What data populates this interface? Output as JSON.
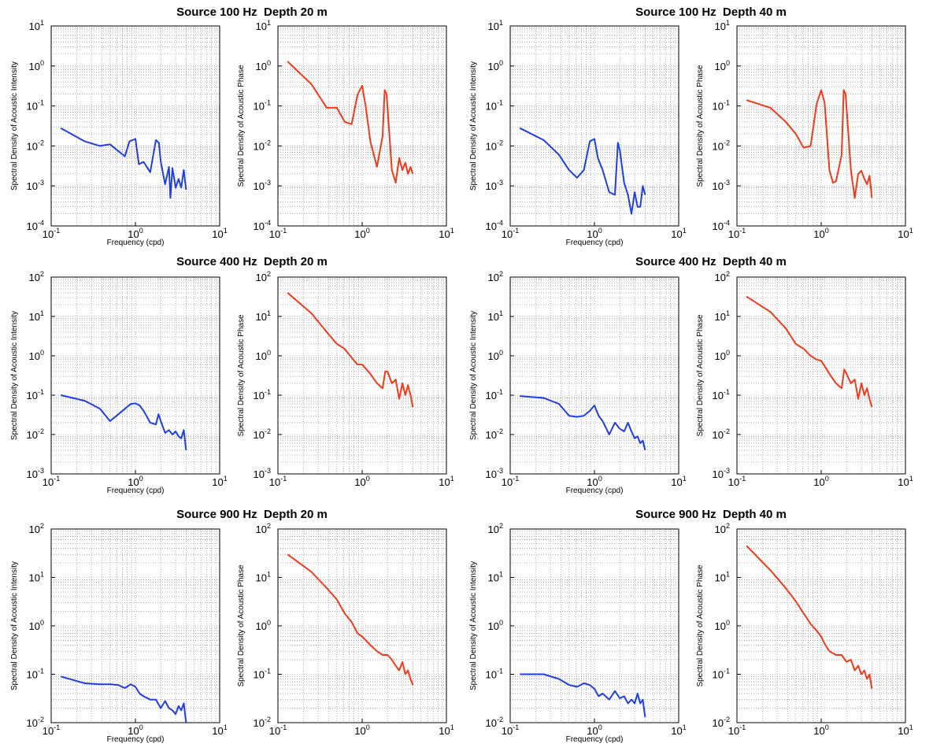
{
  "figure": {
    "titles": [
      {
        "source": "Source 100 Hz",
        "depth": "Depth 20 m"
      },
      {
        "source": "Source 100 Hz",
        "depth": "Depth 40 m"
      },
      {
        "source": "Source 400 Hz",
        "depth": "Depth 20 m"
      },
      {
        "source": "Source 400 Hz",
        "depth": "Depth 40 m"
      },
      {
        "source": "Source 900 Hz",
        "depth": "Depth 20 m"
      },
      {
        "source": "Source 900 Hz",
        "depth": "Depth 40 m"
      }
    ],
    "colors": {
      "intensity": "#1f3fe0",
      "phase": "#f03a1a"
    }
  },
  "chart_data": [
    {
      "type": "line",
      "title": "Source 100 Hz Depth 20 m",
      "xlabel": "Frequency (cpd)",
      "ylabel": "Spectral Density of Acoustic Intensity",
      "xscale": "log",
      "yscale": "log",
      "xlim": [
        0.1,
        10
      ],
      "ylim": [
        0.0001,
        10
      ],
      "grid": true,
      "color": "#1f3fe0",
      "x": [
        0.13,
        0.25,
        0.38,
        0.5,
        0.75,
        0.85,
        1.0,
        1.1,
        1.25,
        1.5,
        1.75,
        1.9,
        2.0,
        2.25,
        2.5,
        2.6,
        2.75,
        3.0,
        3.25,
        3.5,
        3.75,
        4.0
      ],
      "y": [
        0.028,
        0.013,
        0.01,
        0.011,
        0.0055,
        0.013,
        0.015,
        0.0035,
        0.004,
        0.0022,
        0.014,
        0.012,
        0.004,
        0.0011,
        0.003,
        0.0005,
        0.0028,
        0.0009,
        0.0015,
        0.0009,
        0.0025,
        0.0008
      ]
    },
    {
      "type": "line",
      "title": "Source 100 Hz Depth 20 m",
      "xlabel": "",
      "ylabel": "Spectral Density of Acoustic Phase",
      "xscale": "log",
      "yscale": "log",
      "xlim": [
        0.1,
        10
      ],
      "ylim": [
        0.0001,
        10
      ],
      "grid": true,
      "color": "#f03a1a",
      "x": [
        0.13,
        0.25,
        0.38,
        0.5,
        0.62,
        0.75,
        0.88,
        1.0,
        1.1,
        1.25,
        1.5,
        1.75,
        1.85,
        1.95,
        2.25,
        2.5,
        2.75,
        3.0,
        3.25,
        3.5,
        3.75,
        4.0
      ],
      "y": [
        1.3,
        0.35,
        0.09,
        0.09,
        0.04,
        0.035,
        0.19,
        0.32,
        0.1,
        0.013,
        0.003,
        0.018,
        0.25,
        0.2,
        0.0025,
        0.0012,
        0.005,
        0.0025,
        0.0038,
        0.002,
        0.003,
        0.002
      ]
    },
    {
      "type": "line",
      "title": "Source 100 Hz Depth 40 m",
      "xlabel": "Frequency (cpd)",
      "ylabel": "Spectral Density of Acoustic Intensity",
      "xscale": "log",
      "yscale": "log",
      "xlim": [
        0.1,
        10
      ],
      "ylim": [
        0.0001,
        10
      ],
      "grid": true,
      "color": "#1f3fe0",
      "x": [
        0.13,
        0.25,
        0.38,
        0.5,
        0.62,
        0.75,
        0.88,
        1.0,
        1.1,
        1.25,
        1.5,
        1.75,
        1.9,
        2.0,
        2.25,
        2.5,
        2.75,
        3.0,
        3.25,
        3.5,
        3.75,
        4.0
      ],
      "y": [
        0.028,
        0.014,
        0.006,
        0.0025,
        0.0016,
        0.0025,
        0.013,
        0.015,
        0.005,
        0.0025,
        0.0007,
        0.0006,
        0.012,
        0.008,
        0.0012,
        0.0006,
        0.0002,
        0.0007,
        0.0003,
        0.0003,
        0.001,
        0.0006
      ]
    },
    {
      "type": "line",
      "title": "Source 100 Hz Depth 40 m",
      "xlabel": "",
      "ylabel": "Spectral Density of Acoustic Phase",
      "xscale": "log",
      "yscale": "log",
      "xlim": [
        0.1,
        10
      ],
      "ylim": [
        0.0001,
        10
      ],
      "grid": true,
      "color": "#f03a1a",
      "x": [
        0.13,
        0.25,
        0.38,
        0.5,
        0.62,
        0.75,
        0.88,
        1.0,
        1.1,
        1.25,
        1.38,
        1.5,
        1.75,
        1.85,
        1.95,
        2.25,
        2.5,
        2.75,
        3.0,
        3.25,
        3.5,
        3.75,
        4.0
      ],
      "y": [
        0.14,
        0.09,
        0.04,
        0.02,
        0.009,
        0.01,
        0.11,
        0.25,
        0.12,
        0.0025,
        0.0012,
        0.0013,
        0.006,
        0.25,
        0.2,
        0.0025,
        0.0005,
        0.002,
        0.0024,
        0.0015,
        0.0011,
        0.0018,
        0.0005
      ]
    },
    {
      "type": "line",
      "title": "Source 400 Hz Depth 20 m",
      "xlabel": "Frequency (cpd)",
      "ylabel": "Spectral Density of Acoustic Intensity",
      "xscale": "log",
      "yscale": "log",
      "xlim": [
        0.1,
        10
      ],
      "ylim": [
        0.001,
        100
      ],
      "grid": true,
      "color": "#1f3fe0",
      "x": [
        0.13,
        0.25,
        0.38,
        0.5,
        0.62,
        0.75,
        0.88,
        1.0,
        1.12,
        1.25,
        1.5,
        1.75,
        1.88,
        2.0,
        2.25,
        2.5,
        2.75,
        3.0,
        3.25,
        3.5,
        3.75,
        4.0
      ],
      "y": [
        0.1,
        0.072,
        0.045,
        0.022,
        0.032,
        0.045,
        0.06,
        0.062,
        0.055,
        0.04,
        0.02,
        0.018,
        0.033,
        0.022,
        0.011,
        0.013,
        0.01,
        0.012,
        0.009,
        0.008,
        0.013,
        0.004
      ]
    },
    {
      "type": "line",
      "title": "Source 400 Hz Depth 20 m",
      "xlabel": "",
      "ylabel": "Spectral Density of Acoustic Phase",
      "xscale": "log",
      "yscale": "log",
      "xlim": [
        0.1,
        10
      ],
      "ylim": [
        0.001,
        100
      ],
      "grid": true,
      "color": "#f03a1a",
      "x": [
        0.13,
        0.25,
        0.38,
        0.5,
        0.62,
        0.75,
        0.88,
        1.0,
        1.25,
        1.5,
        1.75,
        1.88,
        2.0,
        2.25,
        2.5,
        2.75,
        3.0,
        3.25,
        3.5,
        3.75,
        4.0
      ],
      "y": [
        40,
        12,
        4,
        2,
        1.5,
        0.9,
        0.6,
        0.6,
        0.35,
        0.2,
        0.15,
        0.4,
        0.4,
        0.2,
        0.25,
        0.08,
        0.2,
        0.1,
        0.18,
        0.1,
        0.05
      ]
    },
    {
      "type": "line",
      "title": "Source 400 Hz Depth 40 m",
      "xlabel": "Frequency (cpd)",
      "ylabel": "Spectral Density of Acoustic Intensity",
      "xscale": "log",
      "yscale": "log",
      "xlim": [
        0.1,
        10
      ],
      "ylim": [
        0.001,
        100
      ],
      "grid": true,
      "color": "#1f3fe0",
      "x": [
        0.13,
        0.25,
        0.38,
        0.5,
        0.62,
        0.75,
        0.88,
        1.0,
        1.12,
        1.25,
        1.5,
        1.75,
        2.0,
        2.25,
        2.5,
        2.75,
        3.0,
        3.25,
        3.5,
        3.75,
        4.0
      ],
      "y": [
        0.095,
        0.085,
        0.06,
        0.03,
        0.028,
        0.03,
        0.04,
        0.055,
        0.03,
        0.022,
        0.01,
        0.02,
        0.014,
        0.012,
        0.02,
        0.012,
        0.008,
        0.009,
        0.006,
        0.007,
        0.004
      ]
    },
    {
      "type": "line",
      "title": "Source 400 Hz Depth 40 m",
      "xlabel": "",
      "ylabel": "Spectral Density of Acoustic Phase",
      "xscale": "log",
      "yscale": "log",
      "xlim": [
        0.1,
        10
      ],
      "ylim": [
        0.001,
        100
      ],
      "grid": true,
      "color": "#f03a1a",
      "x": [
        0.13,
        0.25,
        0.38,
        0.5,
        0.62,
        0.75,
        0.88,
        1.0,
        1.25,
        1.5,
        1.75,
        1.88,
        2.0,
        2.25,
        2.5,
        2.75,
        3.0,
        3.25,
        3.5,
        3.75,
        4.0
      ],
      "y": [
        32,
        13,
        5,
        2,
        1.5,
        1.0,
        0.8,
        0.75,
        0.35,
        0.2,
        0.15,
        0.45,
        0.35,
        0.2,
        0.25,
        0.08,
        0.2,
        0.1,
        0.15,
        0.08,
        0.05
      ]
    },
    {
      "type": "line",
      "title": "Source 900 Hz Depth 20 m",
      "xlabel": "Frequency (cpd)",
      "ylabel": "Spectral Density of Acoustic Intensity",
      "xscale": "log",
      "yscale": "log",
      "xlim": [
        0.1,
        10
      ],
      "ylim": [
        0.01,
        100
      ],
      "grid": true,
      "color": "#1f3fe0",
      "x": [
        0.13,
        0.25,
        0.38,
        0.5,
        0.62,
        0.75,
        0.88,
        1.0,
        1.12,
        1.25,
        1.5,
        1.75,
        2.0,
        2.25,
        2.5,
        2.75,
        3.0,
        3.25,
        3.5,
        3.75,
        4.0
      ],
      "y": [
        0.09,
        0.065,
        0.062,
        0.062,
        0.06,
        0.052,
        0.062,
        0.055,
        0.04,
        0.035,
        0.03,
        0.03,
        0.02,
        0.028,
        0.02,
        0.018,
        0.015,
        0.022,
        0.018,
        0.025,
        0.01
      ]
    },
    {
      "type": "line",
      "title": "Source 900 Hz Depth 20 m",
      "xlabel": "",
      "ylabel": "Spectral Density of Acoustic Phase",
      "xscale": "log",
      "yscale": "log",
      "xlim": [
        0.1,
        10
      ],
      "ylim": [
        0.01,
        100
      ],
      "grid": true,
      "color": "#f03a1a",
      "x": [
        0.13,
        0.25,
        0.38,
        0.5,
        0.62,
        0.75,
        0.88,
        1.0,
        1.25,
        1.5,
        1.75,
        2.0,
        2.25,
        2.5,
        2.75,
        3.0,
        3.25,
        3.5,
        3.75,
        4.0
      ],
      "y": [
        30,
        13,
        6,
        3.5,
        1.8,
        1.2,
        0.7,
        0.6,
        0.4,
        0.3,
        0.25,
        0.25,
        0.2,
        0.15,
        0.12,
        0.18,
        0.1,
        0.12,
        0.08,
        0.06
      ]
    },
    {
      "type": "line",
      "title": "Source 900 Hz Depth 40 m",
      "xlabel": "Frequency (cpd)",
      "ylabel": "Spectral Density of Acoustic Intensity",
      "xscale": "log",
      "yscale": "log",
      "xlim": [
        0.1,
        10
      ],
      "ylim": [
        0.01,
        100
      ],
      "grid": true,
      "color": "#1f3fe0",
      "x": [
        0.13,
        0.25,
        0.38,
        0.5,
        0.62,
        0.75,
        0.88,
        1.0,
        1.12,
        1.25,
        1.5,
        1.75,
        2.0,
        2.25,
        2.5,
        2.75,
        3.0,
        3.25,
        3.5,
        3.75,
        4.0
      ],
      "y": [
        0.1,
        0.1,
        0.08,
        0.06,
        0.055,
        0.065,
        0.06,
        0.05,
        0.035,
        0.04,
        0.03,
        0.045,
        0.032,
        0.035,
        0.025,
        0.03,
        0.025,
        0.04,
        0.025,
        0.03,
        0.013
      ]
    },
    {
      "type": "line",
      "title": "Source 900 Hz Depth 40 m",
      "xlabel": "",
      "ylabel": "Spectral Density of Acoustic Phase",
      "xscale": "log",
      "yscale": "log",
      "xlim": [
        0.1,
        10
      ],
      "ylim": [
        0.01,
        100
      ],
      "grid": true,
      "color": "#f03a1a",
      "x": [
        0.13,
        0.25,
        0.38,
        0.5,
        0.62,
        0.75,
        0.88,
        1.0,
        1.12,
        1.25,
        1.5,
        1.75,
        2.0,
        2.25,
        2.5,
        2.75,
        3.0,
        3.25,
        3.5,
        3.75,
        4.0
      ],
      "y": [
        45,
        14,
        6,
        3.2,
        1.8,
        1.1,
        0.8,
        0.6,
        0.4,
        0.3,
        0.25,
        0.25,
        0.18,
        0.2,
        0.12,
        0.15,
        0.1,
        0.12,
        0.08,
        0.1,
        0.05
      ]
    }
  ]
}
